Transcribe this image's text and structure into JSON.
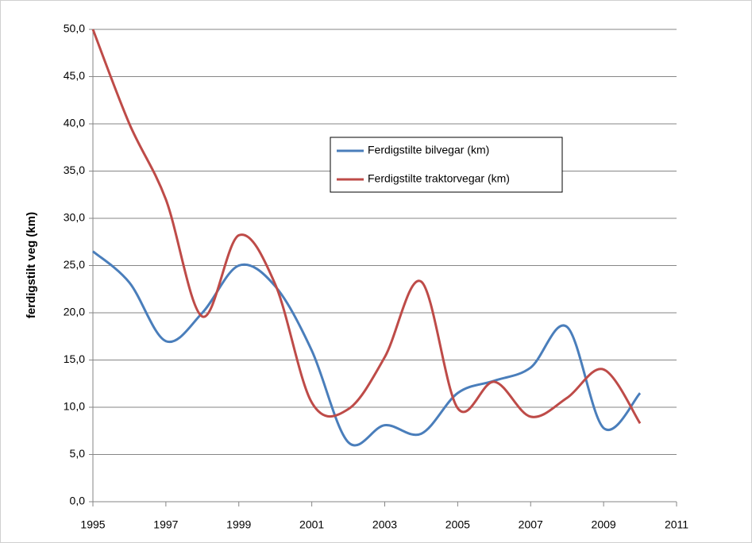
{
  "chart_data": {
    "type": "line",
    "y_label": "ferdigstilt veg (km)",
    "x": [
      1995,
      1996,
      1997,
      1998,
      1999,
      2000,
      2001,
      2002,
      2003,
      2004,
      2005,
      2006,
      2007,
      2008,
      2009,
      2010
    ],
    "series": [
      {
        "name": "Ferdigstilte bilvegar (km)",
        "color": "#4a7ebb",
        "values": [
          26.5,
          23.2,
          17.0,
          20.0,
          25.0,
          22.8,
          16.0,
          6.3,
          8.1,
          7.2,
          11.5,
          12.8,
          14.2,
          18.5,
          7.8,
          11.5
        ]
      },
      {
        "name": "Ferdigstilte traktorvegar (km)",
        "color": "#be4b48",
        "values": [
          50.0,
          40.0,
          32.0,
          19.6,
          28.2,
          23.0,
          10.5,
          9.8,
          15.3,
          23.3,
          9.9,
          12.7,
          9.0,
          11.0,
          14.0,
          8.3
        ]
      }
    ],
    "xlim": [
      1995,
      2011
    ],
    "xticks": [
      1995,
      1997,
      1999,
      2001,
      2003,
      2005,
      2007,
      2009,
      2011
    ],
    "ylim": [
      0,
      50
    ],
    "yticks": [
      {
        "value": 0,
        "label": "0,0"
      },
      {
        "value": 5,
        "label": "5,0"
      },
      {
        "value": 10,
        "label": "10,0"
      },
      {
        "value": 15,
        "label": "15,0"
      },
      {
        "value": 20,
        "label": "20,0"
      },
      {
        "value": 25,
        "label": "25,0"
      },
      {
        "value": 30,
        "label": "30,0"
      },
      {
        "value": 35,
        "label": "35,0"
      },
      {
        "value": 40,
        "label": "40,0"
      },
      {
        "value": 45,
        "label": "45,0"
      },
      {
        "value": 50,
        "label": "50,0"
      }
    ],
    "grid": true,
    "smooth": true
  }
}
